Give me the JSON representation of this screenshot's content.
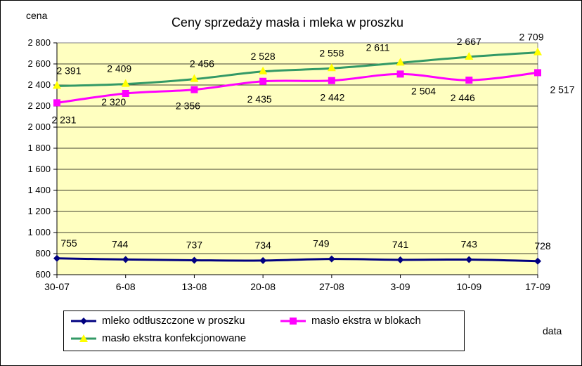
{
  "chart_data": {
    "type": "line",
    "title": "Ceny sprzedaży masła i mleka w proszku",
    "xlabel": "data",
    "ylabel": "cena",
    "categories": [
      "30-07",
      "6-08",
      "13-08",
      "20-08",
      "27-08",
      "3-09",
      "10-09",
      "17-09"
    ],
    "ylim": [
      600,
      2800
    ],
    "yticks": [
      600,
      800,
      1000,
      1200,
      1400,
      1600,
      1800,
      2000,
      2200,
      2400,
      2600,
      2800
    ],
    "ytick_labels": [
      "600",
      "800",
      "1 000",
      "1 200",
      "1 400",
      "1 600",
      "1 800",
      "2 000",
      "2 200",
      "2 400",
      "2 600",
      "2 800"
    ],
    "grid": "horizontal",
    "legend_position": "bottom",
    "series": [
      {
        "name": "mleko odtłuszczone w proszku",
        "color": "#000080",
        "marker": "diamond",
        "values": [
          755,
          744,
          737,
          734,
          749,
          741,
          743,
          728
        ],
        "labels": [
          "755",
          "744",
          "737",
          "734",
          "749",
          "741",
          "743",
          "728"
        ]
      },
      {
        "name": "masło ekstra w blokach",
        "color": "#FF00FF",
        "marker": "square",
        "values": [
          2231,
          2320,
          2356,
          2435,
          2442,
          2504,
          2446,
          2517
        ],
        "labels": [
          "2 231",
          "2 320",
          "2 356",
          "2 435",
          "2 442",
          "2 504",
          "2 446",
          "2 517"
        ]
      },
      {
        "name": "masło ekstra konfekcjonowane",
        "color": "#339966",
        "marker": "triangle",
        "marker_color": "#FFFF00",
        "values": [
          2391,
          2409,
          2456,
          2528,
          2558,
          2611,
          2667,
          2709
        ],
        "labels": [
          "2 391",
          "2 409",
          "2 456",
          "2 528",
          "2 558",
          "2 611",
          "2 667",
          "2 709"
        ]
      }
    ],
    "plot_background": "#FFFFC0"
  }
}
